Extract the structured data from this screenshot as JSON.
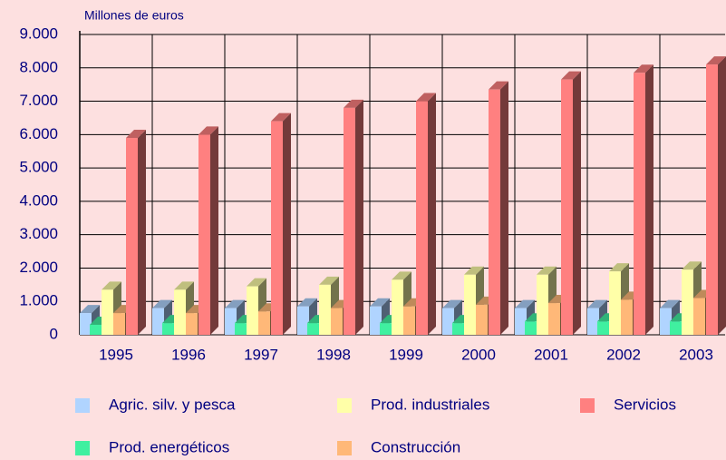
{
  "chart_data": {
    "type": "bar3d",
    "y_label": "Millones de euros",
    "categories": [
      "1995",
      "1996",
      "1997",
      "1998",
      "1999",
      "2000",
      "2001",
      "2002",
      "2003"
    ],
    "series": [
      {
        "name": "Agric. silv. y pesca",
        "color": "#b0d4ff",
        "values": [
          650,
          800,
          800,
          850,
          850,
          800,
          800,
          800,
          800
        ]
      },
      {
        "name": "Prod. energéticos",
        "color": "#40f0a0",
        "values": [
          300,
          350,
          350,
          350,
          350,
          350,
          400,
          400,
          400
        ]
      },
      {
        "name": "Prod. industriales",
        "color": "#ffffa8",
        "values": [
          1350,
          1350,
          1450,
          1500,
          1650,
          1800,
          1800,
          1900,
          1950
        ]
      },
      {
        "name": "Construcción",
        "color": "#ffb878",
        "values": [
          650,
          650,
          700,
          800,
          850,
          900,
          950,
          1050,
          1100
        ]
      },
      {
        "name": "Servicios",
        "color": "#ff8080",
        "values": [
          5900,
          6000,
          6400,
          6800,
          7000,
          7350,
          7650,
          7850,
          8100
        ]
      }
    ],
    "ylim": [
      0,
      9000
    ],
    "yticks": [
      0,
      {
        "value": 1000,
        "label": "1.000"
      },
      {
        "value": 2000,
        "label": "2.000"
      },
      {
        "value": 3000,
        "label": "3.000"
      },
      {
        "value": 4000,
        "label": "4.000"
      },
      {
        "value": 5000,
        "label": "5.000"
      },
      {
        "value": 6000,
        "label": "6.000"
      },
      {
        "value": 7000,
        "label": "7.000"
      },
      {
        "value": 8000,
        "label": "8.000"
      },
      {
        "value": 9000,
        "label": "9.000"
      }
    ],
    "grid": true
  }
}
